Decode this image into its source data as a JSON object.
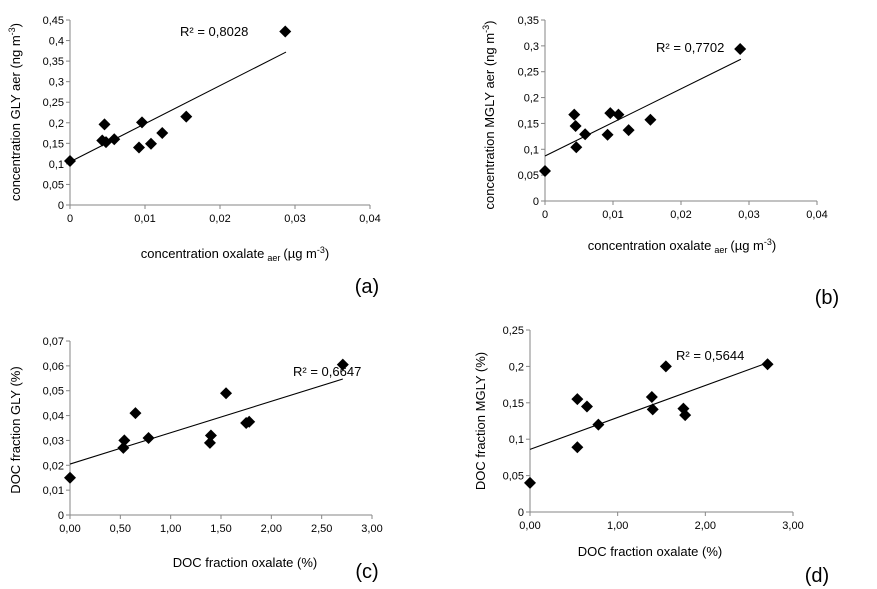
{
  "chart_data": [
    {
      "type": "scatter",
      "panel": "(a)",
      "xlabel": "concentration oxalate",
      "xlabel_sub": "aer",
      "xlabel_unit": "(µg m",
      "xlabel_unit_sup": "-3",
      "xlabel_close": ")",
      "ylabel": "concentration GLY aer (ng m",
      "ylabel_sup": "-3",
      "ylabel_close": ")",
      "xlim": [
        0,
        0.04
      ],
      "ylim": [
        0,
        0.45
      ],
      "xticks": [
        "0",
        "0,01",
        "0,02",
        "0,03",
        "0,04"
      ],
      "yticks": [
        "0",
        "0,05",
        "0,1",
        "0,15",
        "0,2",
        "0,25",
        "0,3",
        "0,35",
        "0,4",
        "0,45"
      ],
      "annotation": "R² = 0,8028",
      "trendline": {
        "x": [
          0,
          0.0288
        ],
        "y": [
          0.105,
          0.372
        ]
      },
      "points": [
        {
          "x": 0.0,
          "y": 0.107
        },
        {
          "x": 0.0043,
          "y": 0.157
        },
        {
          "x": 0.0046,
          "y": 0.196
        },
        {
          "x": 0.0048,
          "y": 0.153
        },
        {
          "x": 0.0059,
          "y": 0.16
        },
        {
          "x": 0.0092,
          "y": 0.14
        },
        {
          "x": 0.0096,
          "y": 0.201
        },
        {
          "x": 0.0108,
          "y": 0.149
        },
        {
          "x": 0.0123,
          "y": 0.175
        },
        {
          "x": 0.0155,
          "y": 0.215
        },
        {
          "x": 0.0287,
          "y": 0.422
        }
      ]
    },
    {
      "type": "scatter",
      "panel": "(b)",
      "xlabel": "concentration oxalate",
      "xlabel_sub": "aer",
      "xlabel_unit": "(µg m",
      "xlabel_unit_sup": "-3",
      "xlabel_close": ")",
      "ylabel": "concentration MGLY aer (ng m",
      "ylabel_sup": "-3",
      "ylabel_close": ")",
      "xlim": [
        0,
        0.04
      ],
      "ylim": [
        0,
        0.35
      ],
      "xticks": [
        "0",
        "0,01",
        "0,02",
        "0,03",
        "0,04"
      ],
      "yticks": [
        "0",
        "0,05",
        "0,1",
        "0,15",
        "0,2",
        "0,25",
        "0,3",
        "0,35"
      ],
      "annotation": "R² = 0,7702",
      "trendline": {
        "x": [
          0,
          0.0288
        ],
        "y": [
          0.087,
          0.274
        ]
      },
      "points": [
        {
          "x": 0.0,
          "y": 0.058
        },
        {
          "x": 0.0043,
          "y": 0.167
        },
        {
          "x": 0.0045,
          "y": 0.145
        },
        {
          "x": 0.0046,
          "y": 0.104
        },
        {
          "x": 0.0059,
          "y": 0.129
        },
        {
          "x": 0.0092,
          "y": 0.128
        },
        {
          "x": 0.0096,
          "y": 0.17
        },
        {
          "x": 0.0108,
          "y": 0.167
        },
        {
          "x": 0.0123,
          "y": 0.137
        },
        {
          "x": 0.0155,
          "y": 0.157
        },
        {
          "x": 0.0287,
          "y": 0.294
        }
      ]
    },
    {
      "type": "scatter",
      "panel": "(c)",
      "xlabel": "DOC  fraction oxalate (%)",
      "ylabel": "DOC  fraction GLY (%)",
      "xlim": [
        0,
        3
      ],
      "ylim": [
        0,
        0.07
      ],
      "xticks": [
        "0,00",
        "0,50",
        "1,00",
        "1,50",
        "2,00",
        "2,50",
        "3,00"
      ],
      "yticks": [
        "0",
        "0,01",
        "0,02",
        "0,03",
        "0,04",
        "0,05",
        "0,06",
        "0,07"
      ],
      "annotation": "R² = 0,6647",
      "trendline": {
        "x": [
          0,
          2.71
        ],
        "y": [
          0.0205,
          0.0547
        ]
      },
      "points": [
        {
          "x": 0.0,
          "y": 0.015
        },
        {
          "x": 0.53,
          "y": 0.027
        },
        {
          "x": 0.54,
          "y": 0.03
        },
        {
          "x": 0.65,
          "y": 0.041
        },
        {
          "x": 0.78,
          "y": 0.031
        },
        {
          "x": 1.39,
          "y": 0.029
        },
        {
          "x": 1.4,
          "y": 0.032
        },
        {
          "x": 1.55,
          "y": 0.049
        },
        {
          "x": 1.75,
          "y": 0.037
        },
        {
          "x": 1.78,
          "y": 0.0375
        },
        {
          "x": 2.71,
          "y": 0.0605
        }
      ]
    },
    {
      "type": "scatter",
      "panel": "(d)",
      "xlabel": "DOC  fraction oxalate (%)",
      "ylabel": "DOC  fraction  MGLY (%)",
      "xlim": [
        0,
        3
      ],
      "ylim": [
        0,
        0.25
      ],
      "xticks": [
        "0,00",
        "1,00",
        "2,00",
        "3,00"
      ],
      "yticks": [
        "0",
        "0,05",
        "0,1",
        "0,15",
        "0,2",
        "0,25"
      ],
      "annotation": "R² = 0,5644",
      "trendline": {
        "x": [
          0,
          2.71
        ],
        "y": [
          0.086,
          0.205
        ]
      },
      "points": [
        {
          "x": 0.0,
          "y": 0.04
        },
        {
          "x": 0.54,
          "y": 0.155
        },
        {
          "x": 0.54,
          "y": 0.089
        },
        {
          "x": 0.65,
          "y": 0.145
        },
        {
          "x": 0.78,
          "y": 0.12
        },
        {
          "x": 1.39,
          "y": 0.158
        },
        {
          "x": 1.4,
          "y": 0.141
        },
        {
          "x": 1.55,
          "y": 0.2
        },
        {
          "x": 1.75,
          "y": 0.142
        },
        {
          "x": 1.77,
          "y": 0.133
        },
        {
          "x": 2.71,
          "y": 0.203
        }
      ]
    }
  ]
}
